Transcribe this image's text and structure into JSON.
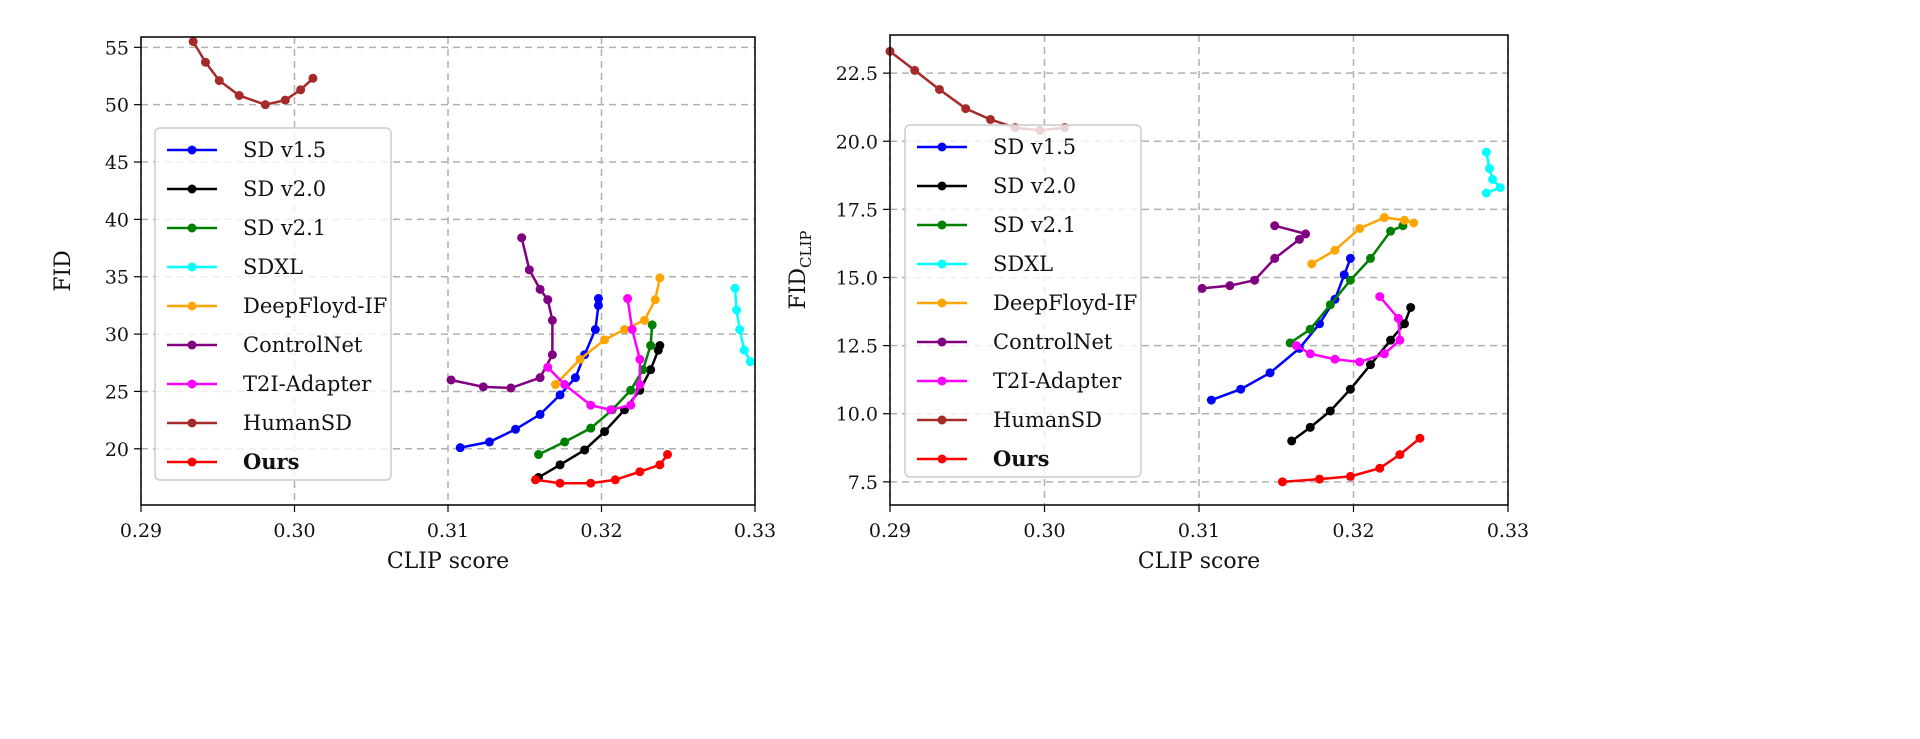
{
  "chart_data": [
    {
      "type": "line",
      "xlabel": "CLIP score",
      "ylabel": "FID",
      "ylabel_sub": "",
      "xlim": [
        0.29,
        0.33
      ],
      "ylim": [
        15.1,
        55.9
      ],
      "xticks": [
        0.29,
        0.3,
        0.31,
        0.32,
        0.33
      ],
      "xtick_labels": [
        "0.29",
        "0.30",
        "0.31",
        "0.32",
        "0.33"
      ],
      "yticks": [
        20,
        25,
        30,
        35,
        40,
        45,
        50,
        55
      ],
      "ytick_labels": [
        "20",
        "25",
        "30",
        "35",
        "40",
        "45",
        "50",
        "55"
      ],
      "grid": true,
      "legend_placement": "center-left",
      "series": [
        {
          "name": "SD v1.5",
          "color": "#0000ff",
          "points": [
            [
              0.3108,
              20.1
            ],
            [
              0.3127,
              20.6
            ],
            [
              0.3144,
              21.7
            ],
            [
              0.316,
              23.0
            ],
            [
              0.3173,
              24.7
            ],
            [
              0.3183,
              26.2
            ],
            [
              0.3189,
              28.2
            ],
            [
              0.3196,
              30.4
            ],
            [
              0.3198,
              32.5
            ],
            [
              0.3198,
              33.1
            ]
          ]
        },
        {
          "name": "SD v2.0",
          "color": "#000000",
          "points": [
            [
              0.3159,
              17.5
            ],
            [
              0.3173,
              18.6
            ],
            [
              0.3189,
              19.9
            ],
            [
              0.3202,
              21.5
            ],
            [
              0.3215,
              23.4
            ],
            [
              0.3225,
              25.1
            ],
            [
              0.3232,
              26.9
            ],
            [
              0.3237,
              28.6
            ],
            [
              0.3238,
              29.0
            ]
          ]
        },
        {
          "name": "SD v2.1",
          "color": "#008000",
          "points": [
            [
              0.3159,
              19.5
            ],
            [
              0.3176,
              20.6
            ],
            [
              0.3193,
              21.8
            ],
            [
              0.3207,
              23.4
            ],
            [
              0.3219,
              25.1
            ],
            [
              0.3227,
              26.9
            ],
            [
              0.3232,
              29.0
            ],
            [
              0.3233,
              30.8
            ]
          ]
        },
        {
          "name": "SDXL",
          "color": "#00ffff",
          "points": [
            [
              0.3287,
              34.0
            ],
            [
              0.3288,
              32.1
            ],
            [
              0.329,
              30.4
            ],
            [
              0.3293,
              28.6
            ],
            [
              0.3297,
              27.6
            ]
          ]
        },
        {
          "name": "DeepFloyd-IF",
          "color": "#ffa500",
          "points": [
            [
              0.317,
              25.6
            ],
            [
              0.3186,
              27.8
            ],
            [
              0.3202,
              29.5
            ],
            [
              0.3215,
              30.4
            ],
            [
              0.3228,
              31.2
            ],
            [
              0.3235,
              33.0
            ],
            [
              0.3238,
              34.9
            ]
          ]
        },
        {
          "name": "ControlNet",
          "color": "#800080",
          "points": [
            [
              0.3102,
              26.0
            ],
            [
              0.3123,
              25.4
            ],
            [
              0.3141,
              25.3
            ],
            [
              0.316,
              26.2
            ],
            [
              0.3168,
              28.2
            ],
            [
              0.3168,
              31.2
            ],
            [
              0.3165,
              33.0
            ],
            [
              0.316,
              33.9
            ],
            [
              0.3153,
              35.6
            ],
            [
              0.3148,
              38.4
            ]
          ]
        },
        {
          "name": "T2I-Adapter",
          "color": "#ff00ff",
          "points": [
            [
              0.3217,
              33.1
            ],
            [
              0.322,
              30.4
            ],
            [
              0.3225,
              27.8
            ],
            [
              0.3225,
              25.6
            ],
            [
              0.3219,
              23.8
            ],
            [
              0.3206,
              23.4
            ],
            [
              0.3193,
              23.8
            ],
            [
              0.3176,
              25.6
            ],
            [
              0.3165,
              27.1
            ]
          ]
        },
        {
          "name": "HumanSD",
          "color": "#a52a2a",
          "points": [
            [
              0.2934,
              55.5
            ],
            [
              0.2942,
              53.7
            ],
            [
              0.2951,
              52.1
            ],
            [
              0.2964,
              50.8
            ],
            [
              0.2981,
              50.0
            ],
            [
              0.2994,
              50.4
            ],
            [
              0.3004,
              51.3
            ],
            [
              0.3012,
              52.3
            ]
          ]
        },
        {
          "name": "Ours",
          "bold": true,
          "color": "#ff0000",
          "points": [
            [
              0.3157,
              17.3
            ],
            [
              0.3173,
              17.0
            ],
            [
              0.3193,
              17.0
            ],
            [
              0.3209,
              17.3
            ],
            [
              0.3225,
              18.0
            ],
            [
              0.3238,
              18.6
            ],
            [
              0.3243,
              19.5
            ]
          ]
        }
      ]
    },
    {
      "type": "line",
      "xlabel": "CLIP score",
      "ylabel": "FID",
      "ylabel_sub": "CLIP",
      "xlim": [
        0.29,
        0.33
      ],
      "ylim": [
        6.65,
        23.9
      ],
      "xticks": [
        0.29,
        0.3,
        0.31,
        0.32,
        0.33
      ],
      "xtick_labels": [
        "0.29",
        "0.30",
        "0.31",
        "0.32",
        "0.33"
      ],
      "yticks": [
        7.5,
        10,
        12.5,
        15,
        17.5,
        20,
        22.5
      ],
      "ytick_labels": [
        "7.5",
        "10.0",
        "12.5",
        "15.0",
        "17.5",
        "20.0",
        "22.5"
      ],
      "grid": true,
      "legend_placement": "center-left",
      "series": [
        {
          "name": "SD v1.5",
          "color": "#0000ff",
          "points": [
            [
              0.3108,
              10.5
            ],
            [
              0.3127,
              10.9
            ],
            [
              0.3146,
              11.5
            ],
            [
              0.3165,
              12.4
            ],
            [
              0.3178,
              13.3
            ],
            [
              0.3188,
              14.2
            ],
            [
              0.3194,
              15.1
            ],
            [
              0.3198,
              15.7
            ]
          ]
        },
        {
          "name": "SD v2.0",
          "color": "#000000",
          "points": [
            [
              0.316,
              9.0
            ],
            [
              0.3172,
              9.5
            ],
            [
              0.3185,
              10.1
            ],
            [
              0.3198,
              10.9
            ],
            [
              0.3211,
              11.8
            ],
            [
              0.3224,
              12.7
            ],
            [
              0.3233,
              13.3
            ],
            [
              0.3237,
              13.9
            ]
          ]
        },
        {
          "name": "SD v2.1",
          "color": "#008000",
          "points": [
            [
              0.3159,
              12.6
            ],
            [
              0.3172,
              13.1
            ],
            [
              0.3185,
              14.0
            ],
            [
              0.3198,
              14.9
            ],
            [
              0.3211,
              15.7
            ],
            [
              0.3224,
              16.7
            ],
            [
              0.3232,
              16.9
            ]
          ]
        },
        {
          "name": "SDXL",
          "color": "#00ffff",
          "points": [
            [
              0.3286,
              19.6
            ],
            [
              0.3288,
              19.0
            ],
            [
              0.329,
              18.6
            ],
            [
              0.3295,
              18.3
            ],
            [
              0.3286,
              18.1
            ]
          ]
        },
        {
          "name": "DeepFloyd-IF",
          "color": "#ffa500",
          "points": [
            [
              0.3173,
              15.5
            ],
            [
              0.3188,
              16.0
            ],
            [
              0.3204,
              16.8
            ],
            [
              0.322,
              17.2
            ],
            [
              0.3233,
              17.1
            ],
            [
              0.3239,
              17.0
            ]
          ]
        },
        {
          "name": "ControlNet",
          "color": "#800080",
          "points": [
            [
              0.3102,
              14.6
            ],
            [
              0.312,
              14.7
            ],
            [
              0.3136,
              14.9
            ],
            [
              0.3149,
              15.7
            ],
            [
              0.3165,
              16.4
            ],
            [
              0.3169,
              16.6
            ],
            [
              0.3149,
              16.9
            ]
          ]
        },
        {
          "name": "T2I-Adapter",
          "color": "#ff00ff",
          "points": [
            [
              0.3217,
              14.3
            ],
            [
              0.3229,
              13.5
            ],
            [
              0.323,
              12.7
            ],
            [
              0.322,
              12.2
            ],
            [
              0.3204,
              11.9
            ],
            [
              0.3188,
              12.0
            ],
            [
              0.3172,
              12.2
            ],
            [
              0.3163,
              12.5
            ]
          ]
        },
        {
          "name": "HumanSD",
          "color": "#a52a2a",
          "points": [
            [
              0.29,
              23.3
            ],
            [
              0.2916,
              22.6
            ],
            [
              0.2932,
              21.9
            ],
            [
              0.2949,
              21.2
            ],
            [
              0.2965,
              20.8
            ],
            [
              0.2981,
              20.5
            ],
            [
              0.2997,
              20.4
            ],
            [
              0.3013,
              20.5
            ]
          ]
        },
        {
          "name": "Ours",
          "bold": true,
          "color": "#ff0000",
          "points": [
            [
              0.3154,
              7.5
            ],
            [
              0.3178,
              7.6
            ],
            [
              0.3198,
              7.7
            ],
            [
              0.3217,
              8.0
            ],
            [
              0.323,
              8.5
            ],
            [
              0.3243,
              9.1
            ]
          ]
        }
      ]
    }
  ]
}
